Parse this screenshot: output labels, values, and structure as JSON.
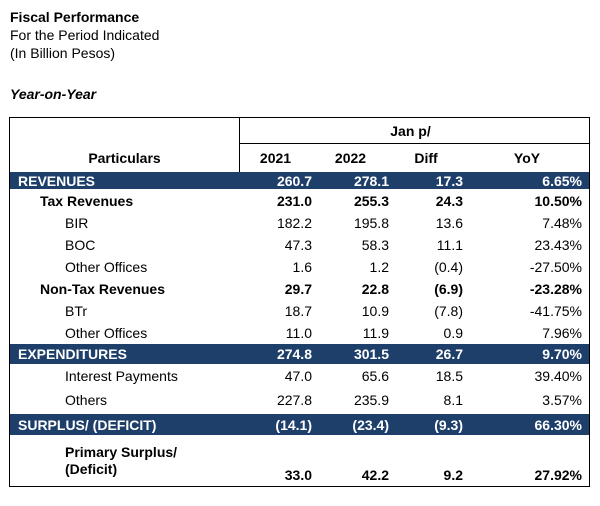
{
  "header": {
    "title": "Fiscal Performance",
    "subtitle": "For the Period Indicated",
    "unit": "(In Billion Pesos)"
  },
  "section": "Year-on-Year",
  "table": {
    "period": "Jan p/",
    "columns": [
      "Particulars",
      "2021",
      "2022",
      "Diff",
      "YoY"
    ],
    "rows": [
      {
        "label": "REVENUES",
        "v": [
          "260.7",
          "278.1",
          "17.3",
          "6.65%"
        ]
      },
      {
        "label": "Tax Revenues",
        "v": [
          "231.0",
          "255.3",
          "24.3",
          "10.50%"
        ]
      },
      {
        "label": "BIR",
        "v": [
          "182.2",
          "195.8",
          "13.6",
          "7.48%"
        ]
      },
      {
        "label": "BOC",
        "v": [
          "47.3",
          "58.3",
          "11.1",
          "23.43%"
        ]
      },
      {
        "label": "Other Offices",
        "v": [
          "1.6",
          "1.2",
          "(0.4)",
          "-27.50%"
        ]
      },
      {
        "label": "Non-Tax Revenues",
        "v": [
          "29.7",
          "22.8",
          "(6.9)",
          "-23.28%"
        ]
      },
      {
        "label": "BTr",
        "v": [
          "18.7",
          "10.9",
          "(7.8)",
          "-41.75%"
        ]
      },
      {
        "label": "Other Offices",
        "v": [
          "11.0",
          "11.9",
          "0.9",
          "7.96%"
        ]
      },
      {
        "label": "EXPENDITURES",
        "v": [
          "274.8",
          "301.5",
          "26.7",
          "9.70%"
        ]
      },
      {
        "label": "Interest Payments",
        "v": [
          "47.0",
          "65.6",
          "18.5",
          "39.40%"
        ]
      },
      {
        "label": "Others",
        "v": [
          "227.8",
          "235.9",
          "8.1",
          "3.57%"
        ]
      },
      {
        "label": "SURPLUS/ (DEFICIT)",
        "v": [
          "(14.1)",
          "(23.4)",
          "(9.3)",
          "66.30%"
        ]
      },
      {
        "label": "Primary Surplus/",
        "label2": "(Deficit)",
        "v": [
          "33.0",
          "42.2",
          "9.2",
          "27.92%"
        ]
      }
    ]
  }
}
